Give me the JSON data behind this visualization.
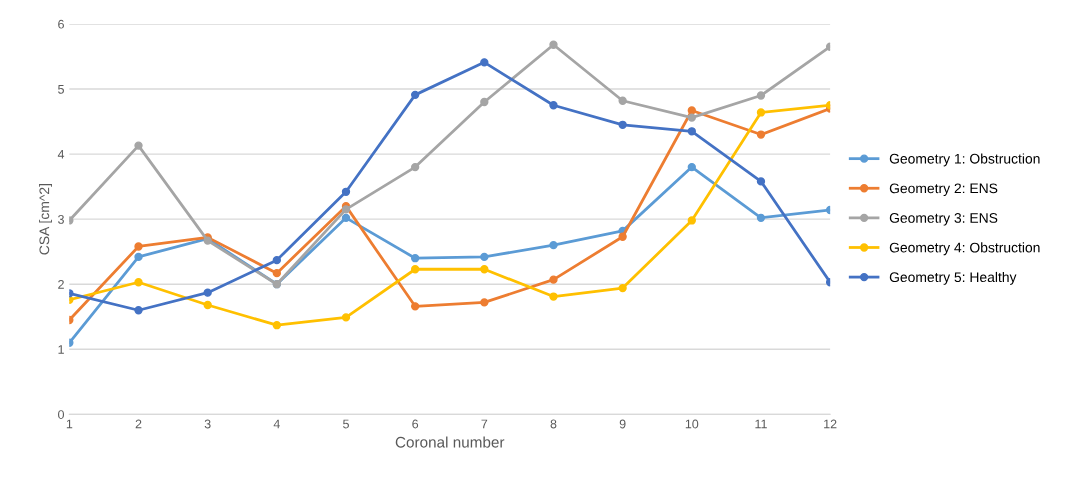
{
  "chart_data": {
    "type": "line",
    "xlabel": "Coronal number",
    "ylabel": "CSA [cm^2]",
    "x": [
      1,
      2,
      3,
      4,
      5,
      6,
      7,
      8,
      9,
      10,
      11,
      12
    ],
    "xlim": [
      1,
      12
    ],
    "xticks": [
      1,
      2,
      3,
      4,
      5,
      6,
      7,
      8,
      9,
      10,
      11,
      12
    ],
    "ylim": [
      0,
      6
    ],
    "yticks": [
      0,
      1,
      2,
      3,
      4,
      5,
      6
    ],
    "grid": "y",
    "legend": "right",
    "marker": "circle",
    "line_style": "solid",
    "series": [
      {
        "name": "Geometry 1: Obstruction",
        "color": "#5b9bd5",
        "values": [
          1.1,
          2.42,
          2.7,
          2.0,
          3.02,
          2.4,
          2.42,
          2.6,
          2.82,
          3.8,
          3.02,
          3.14
        ]
      },
      {
        "name": "Geometry 2: ENS",
        "color": "#ed7d31",
        "values": [
          1.45,
          2.58,
          2.72,
          2.17,
          3.2,
          1.66,
          1.72,
          2.07,
          2.73,
          4.67,
          4.3,
          4.7
        ]
      },
      {
        "name": "Geometry 3: ENS",
        "color": "#a5a5a5",
        "values": [
          2.98,
          4.13,
          2.67,
          2.0,
          3.15,
          3.8,
          4.8,
          5.68,
          4.82,
          4.56,
          4.9,
          5.65
        ]
      },
      {
        "name": "Geometry 4: Obstruction",
        "color": "#ffc000",
        "values": [
          1.76,
          2.03,
          1.68,
          1.37,
          1.49,
          2.23,
          2.23,
          1.81,
          1.94,
          2.98,
          4.64,
          4.75
        ]
      },
      {
        "name": "Geometry 5: Healthy",
        "color": "#4472c4",
        "values": [
          1.86,
          1.6,
          1.87,
          2.37,
          3.42,
          4.91,
          5.41,
          4.75,
          4.45,
          4.35,
          3.58,
          2.03
        ]
      }
    ]
  }
}
